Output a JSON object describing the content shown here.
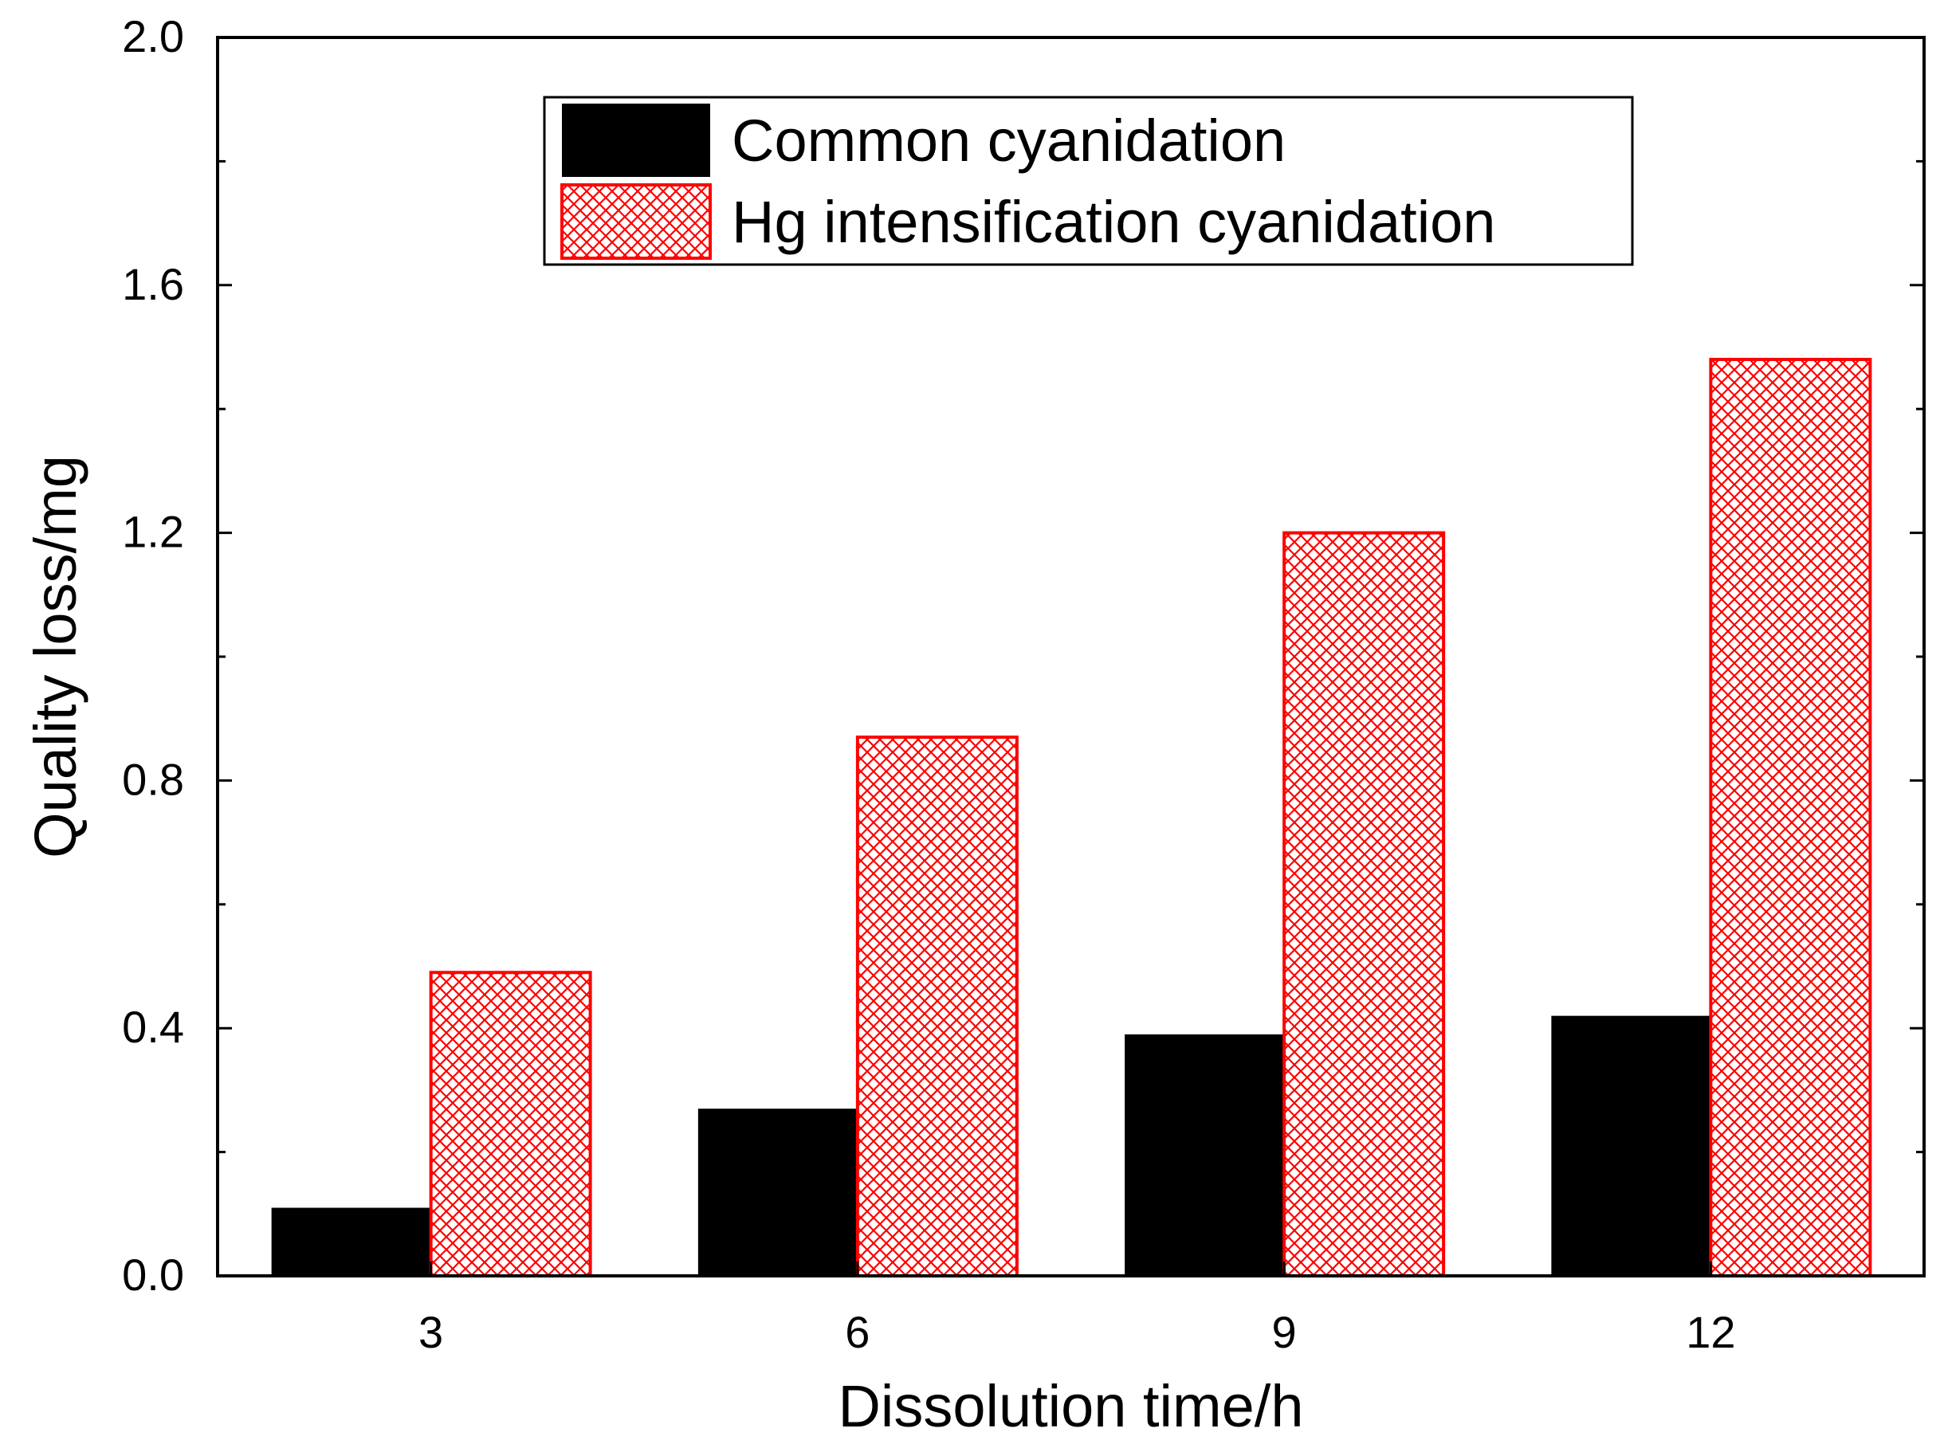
{
  "chart_data": {
    "type": "bar",
    "title": "",
    "xlabel": "Dissolution time/h",
    "ylabel": "Quality loss/mg",
    "categories": [
      "3",
      "6",
      "9",
      "12"
    ],
    "ylim": [
      0.0,
      2.0
    ],
    "yticks": [
      "0.0",
      "0.4",
      "0.8",
      "1.2",
      "1.6",
      "2.0"
    ],
    "ytick_values": [
      0.0,
      0.4,
      0.8,
      1.2,
      1.6,
      2.0
    ],
    "grid": false,
    "legend_position": "top-center",
    "series": [
      {
        "name": "Common cyanidation",
        "values": [
          0.11,
          0.27,
          0.39,
          0.42
        ],
        "color": "#000000",
        "pattern": "solid"
      },
      {
        "name": "Hg intensification cyanidation",
        "values": [
          0.49,
          0.87,
          1.2,
          1.48
        ],
        "color": "#ff0000",
        "pattern": "crosshatch"
      }
    ]
  }
}
